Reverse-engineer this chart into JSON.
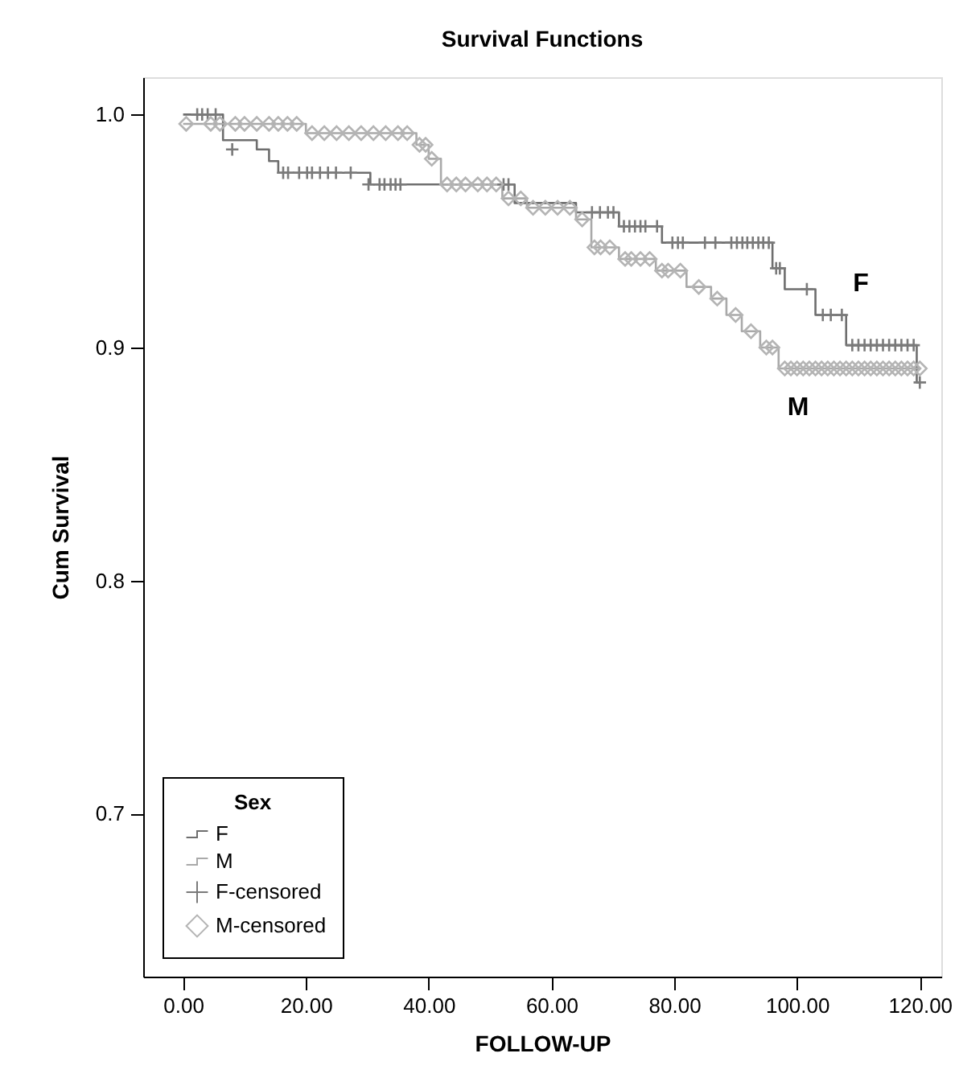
{
  "chart_data": {
    "type": "step",
    "title": "Survival Functions",
    "xlabel": "FOLLOW-UP",
    "ylabel": "Cum Survival",
    "legend_title": "Sex",
    "legend": "bottom left",
    "grid": false,
    "xlim": [
      -6.5,
      123.5
    ],
    "ylim": [
      0.63,
      1.016
    ],
    "xticks": [
      {
        "value": 0,
        "label": "0.00"
      },
      {
        "value": 20,
        "label": "20.00"
      },
      {
        "value": 40,
        "label": "40.00"
      },
      {
        "value": 60,
        "label": "60.00"
      },
      {
        "value": 80,
        "label": "80.00"
      },
      {
        "value": 100,
        "label": "100.00"
      },
      {
        "value": 120,
        "label": "120.00"
      }
    ],
    "yticks": [
      0.7,
      0.8,
      0.9,
      {
        "value": 1.0,
        "label": "1.0"
      }
    ],
    "series": [
      {
        "name": "F",
        "color": "#6e6e6e",
        "x": [
          0,
          6.5,
          12,
          14,
          15.5,
          30.5,
          54,
          64,
          71,
          78,
          96,
          98,
          103,
          108,
          119.5,
          120
        ],
        "values": [
          1.0,
          0.989,
          0.985,
          0.98,
          0.975,
          0.97,
          0.962,
          0.958,
          0.952,
          0.945,
          0.934,
          0.925,
          0.914,
          0.901,
          0.885,
          0.885
        ]
      },
      {
        "name": "M",
        "color": "#a9a9a9",
        "x": [
          0,
          20,
          38,
          40,
          42,
          52,
          56,
          64,
          66.5,
          71,
          77,
          82,
          86,
          88.5,
          91,
          94,
          97,
          120
        ],
        "values": [
          0.996,
          0.992,
          0.987,
          0.981,
          0.97,
          0.964,
          0.96,
          0.955,
          0.943,
          0.938,
          0.933,
          0.926,
          0.921,
          0.914,
          0.907,
          0.9,
          0.891,
          0.891
        ]
      },
      {
        "name": "F-censored",
        "type": "scatter",
        "marker": "cross",
        "color": "#7a7a7a",
        "x": [
          2.3,
          3.1,
          4.0,
          5.3,
          8.0,
          16.3,
          17.1,
          18.9,
          20.2,
          21.0,
          22.3,
          23.6,
          24.9,
          27.3,
          30.2,
          32,
          32.8,
          33.8,
          34.6,
          35.4,
          52.2,
          53,
          66.6,
          67.9,
          69.2,
          70.1,
          71.8,
          72.7,
          73.6,
          74.5,
          75.3,
          77.2,
          79.7,
          80.6,
          81.4,
          85,
          86.7,
          89.3,
          90.2,
          91.1,
          91.9,
          92.8,
          93.7,
          94.5,
          95.4,
          96.6,
          97.2,
          101.6,
          104.2,
          105.5,
          107.3,
          109,
          110,
          111,
          112,
          113,
          114,
          115,
          116,
          117,
          118,
          119,
          120
        ],
        "values": [
          1.0,
          1.0,
          1.0,
          1.0,
          0.985,
          0.975,
          0.975,
          0.975,
          0.975,
          0.975,
          0.975,
          0.975,
          0.975,
          0.975,
          0.97,
          0.97,
          0.97,
          0.97,
          0.97,
          0.97,
          0.97,
          0.97,
          0.958,
          0.958,
          0.958,
          0.958,
          0.952,
          0.952,
          0.952,
          0.952,
          0.952,
          0.952,
          0.945,
          0.945,
          0.945,
          0.945,
          0.945,
          0.945,
          0.945,
          0.945,
          0.945,
          0.945,
          0.945,
          0.945,
          0.945,
          0.934,
          0.934,
          0.925,
          0.914,
          0.914,
          0.914,
          0.901,
          0.901,
          0.901,
          0.901,
          0.901,
          0.901,
          0.901,
          0.901,
          0.901,
          0.901,
          0.901,
          0.885
        ]
      },
      {
        "name": "M-censored",
        "type": "scatter",
        "marker": "diamond",
        "color": "#b4b4b4",
        "x": [
          0.5,
          4.5,
          6,
          8.5,
          10,
          12,
          14,
          15.5,
          17,
          18.5,
          21,
          23,
          25,
          27,
          29,
          31,
          33,
          35,
          36.5,
          38.5,
          39.5,
          40.5,
          43,
          44.5,
          46,
          48,
          49.5,
          51,
          53,
          55,
          57,
          59,
          61,
          63,
          65,
          67,
          68,
          69.5,
          72,
          73,
          74.5,
          76,
          78,
          79,
          81,
          84,
          87,
          90,
          92.5,
          95,
          96,
          98,
          99,
          100,
          101,
          102,
          103,
          104,
          105,
          106,
          107,
          108,
          109,
          110,
          111,
          112,
          113,
          114,
          115,
          116,
          117,
          118,
          119,
          120
        ],
        "values": [
          0.996,
          0.996,
          0.996,
          0.996,
          0.996,
          0.996,
          0.996,
          0.996,
          0.996,
          0.996,
          0.992,
          0.992,
          0.992,
          0.992,
          0.992,
          0.992,
          0.992,
          0.992,
          0.992,
          0.987,
          0.987,
          0.981,
          0.97,
          0.97,
          0.97,
          0.97,
          0.97,
          0.97,
          0.964,
          0.964,
          0.96,
          0.96,
          0.96,
          0.96,
          0.955,
          0.943,
          0.943,
          0.943,
          0.938,
          0.938,
          0.938,
          0.938,
          0.933,
          0.933,
          0.933,
          0.926,
          0.921,
          0.914,
          0.907,
          0.9,
          0.9,
          0.891,
          0.891,
          0.891,
          0.891,
          0.891,
          0.891,
          0.891,
          0.891,
          0.891,
          0.891,
          0.891,
          0.891,
          0.891,
          0.891,
          0.891,
          0.891,
          0.891,
          0.891,
          0.891,
          0.891,
          0.891,
          0.891,
          0.891
        ]
      }
    ],
    "annotations": [
      "F",
      "M"
    ]
  }
}
